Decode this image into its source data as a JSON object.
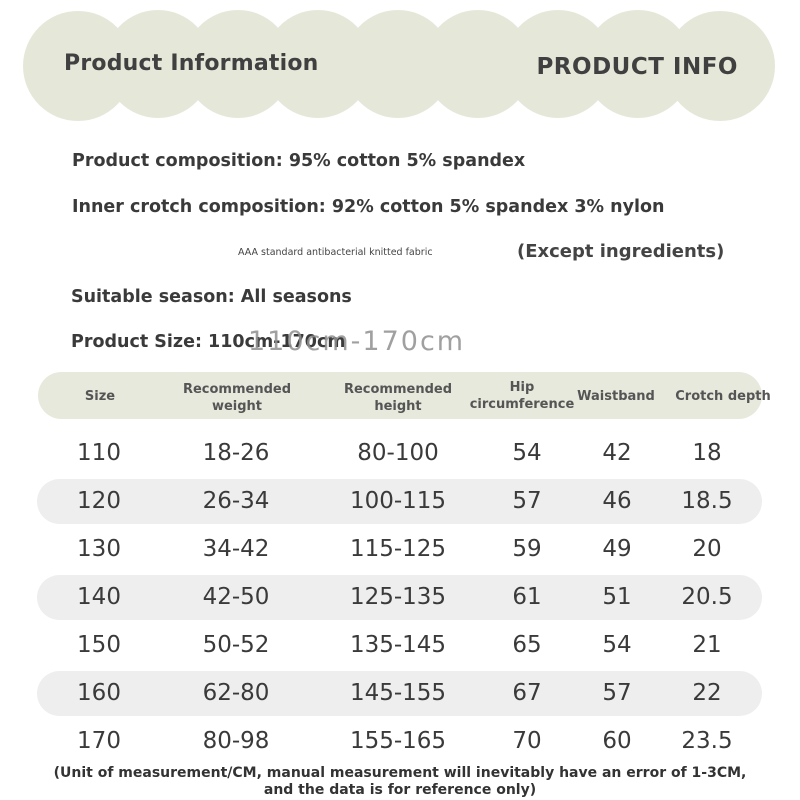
{
  "header": {
    "title_left": "Product Information",
    "title_right": "PRODUCT INFO",
    "background_color": "#e5e8d9"
  },
  "info": {
    "composition": "Product composition: 95% cotton 5% spandex",
    "crotch_composition": "Inner crotch composition: 92% cotton 5% spandex 3% nylon",
    "fabric_note": "AAA standard antibacterial knitted fabric",
    "except_note": "(Except ingredients)",
    "season": "Suitable season: All seasons",
    "size_range": "Product Size: 110cm-170cm",
    "size_overlay": "110cm-170cm"
  },
  "table": {
    "headers": [
      {
        "line1": "Size",
        "line2": ""
      },
      {
        "line1": "Recommended",
        "line2": "weight"
      },
      {
        "line1": "Recommended",
        "line2": "height"
      },
      {
        "line1": "Hip",
        "line2": "circumference"
      },
      {
        "line1": "Waistband",
        "line2": ""
      },
      {
        "line1": "Crotch depth",
        "line2": ""
      }
    ],
    "rows": [
      [
        "110",
        "18-26",
        "80-100",
        "54",
        "42",
        "18"
      ],
      [
        "120",
        "26-34",
        "100-115",
        "57",
        "46",
        "18.5"
      ],
      [
        "130",
        "34-42",
        "115-125",
        "59",
        "49",
        "20"
      ],
      [
        "140",
        "42-50",
        "125-135",
        "61",
        "51",
        "20.5"
      ],
      [
        "150",
        "50-52",
        "135-145",
        "65",
        "54",
        "21"
      ],
      [
        "160",
        "62-80",
        "145-155",
        "67",
        "57",
        "22"
      ],
      [
        "170",
        "80-98",
        "155-165",
        "70",
        "60",
        "23.5"
      ]
    ],
    "header_color": "#e6e9dc",
    "stripe_color": "#eeeeee"
  },
  "footnote": {
    "line1": "(Unit of measurement/CM, manual measurement will inevitably have an error of 1-3CM,",
    "line2": "and the data is for reference only)"
  }
}
